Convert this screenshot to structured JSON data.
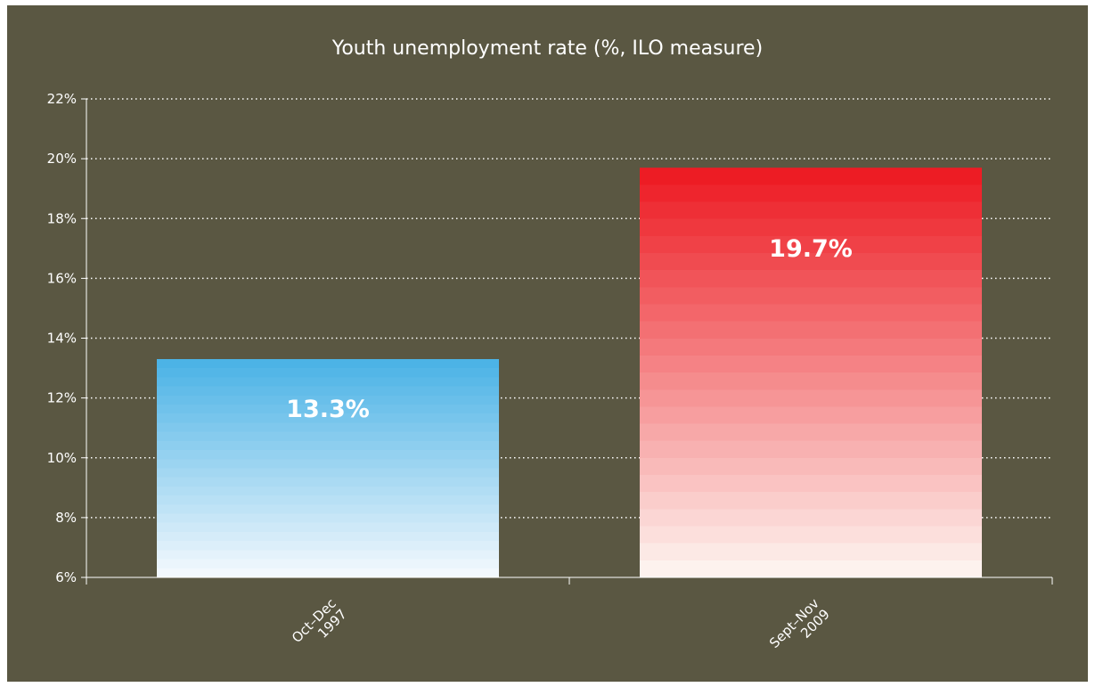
{
  "chart_data": {
    "type": "bar",
    "title": "Youth unemployment rate (%, ILO measure)",
    "categories": [
      [
        "Oct–Dec",
        "1997"
      ],
      [
        "Sept–Nov",
        "2009"
      ]
    ],
    "values": [
      13.3,
      19.7
    ],
    "data_labels": [
      "13.3%",
      "19.7%"
    ],
    "ylim": [
      6,
      22
    ],
    "yticks": [
      6,
      8,
      10,
      12,
      14,
      16,
      18,
      20,
      22
    ],
    "ytick_suffix": "%",
    "grid": true,
    "bar_gradients": [
      {
        "top": "#4cb3e6",
        "bottom": "#f2f8fd"
      },
      {
        "top": "#ed1c24",
        "bottom": "#fdf2ee"
      }
    ]
  },
  "colors": {
    "background": "#5a5742",
    "text": "#ffffff",
    "grid": "#ffffff"
  }
}
